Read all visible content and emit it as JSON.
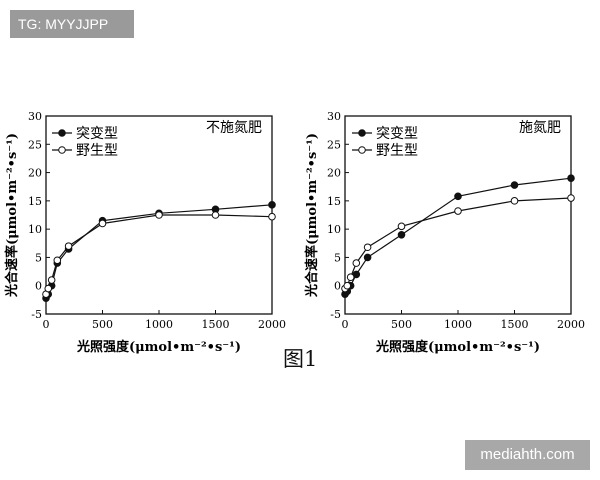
{
  "watermark_top": "TG: MYYJJPP",
  "watermark_bottom": "mediahth.com",
  "figure_caption": "图1",
  "chart_data": [
    {
      "type": "line",
      "title": "不施氮肥",
      "xlabel": "光照强度(μmol•m⁻²•s⁻¹)",
      "ylabel": "光合速率(μmol•m⁻²•s⁻¹)",
      "xlim": [
        0,
        2000
      ],
      "ylim": [
        -5,
        30
      ],
      "xticks": [
        0,
        500,
        1000,
        1500,
        2000
      ],
      "yticks": [
        -5,
        0,
        5,
        10,
        15,
        20,
        25,
        30
      ],
      "grid": false,
      "legend_position": "top-left",
      "series": [
        {
          "name": "突变型",
          "marker": "filled",
          "x": [
            0,
            20,
            50,
            100,
            200,
            500,
            1000,
            1500,
            2000
          ],
          "y": [
            -2.2,
            -1.5,
            0,
            4.0,
            6.5,
            11.5,
            12.8,
            13.5,
            14.3
          ]
        },
        {
          "name": "野生型",
          "marker": "open",
          "x": [
            0,
            20,
            50,
            100,
            200,
            500,
            1000,
            1500,
            2000
          ],
          "y": [
            -1.5,
            -0.5,
            1.0,
            4.5,
            7.0,
            11.0,
            12.5,
            12.5,
            12.2
          ]
        }
      ]
    },
    {
      "type": "line",
      "title": "施氮肥",
      "xlabel": "光照强度(μmol•m⁻²•s⁻¹)",
      "ylabel": "光合速率(μmol•m⁻²•s⁻¹)",
      "xlim": [
        0,
        2000
      ],
      "ylim": [
        -5,
        30
      ],
      "xticks": [
        0,
        500,
        1000,
        1500,
        2000
      ],
      "yticks": [
        -5,
        0,
        5,
        10,
        15,
        20,
        25,
        30
      ],
      "grid": false,
      "legend_position": "top-left",
      "series": [
        {
          "name": "突变型",
          "marker": "filled",
          "x": [
            0,
            20,
            50,
            100,
            200,
            500,
            1000,
            1500,
            2000
          ],
          "y": [
            -1.5,
            -1.0,
            0,
            2.0,
            5.0,
            9.0,
            15.8,
            17.8,
            19.0
          ]
        },
        {
          "name": "野生型",
          "marker": "open",
          "x": [
            0,
            20,
            50,
            100,
            200,
            500,
            1000,
            1500,
            2000
          ],
          "y": [
            -0.5,
            0,
            1.5,
            4.0,
            6.8,
            10.5,
            13.2,
            15.0,
            15.5
          ]
        }
      ]
    }
  ]
}
